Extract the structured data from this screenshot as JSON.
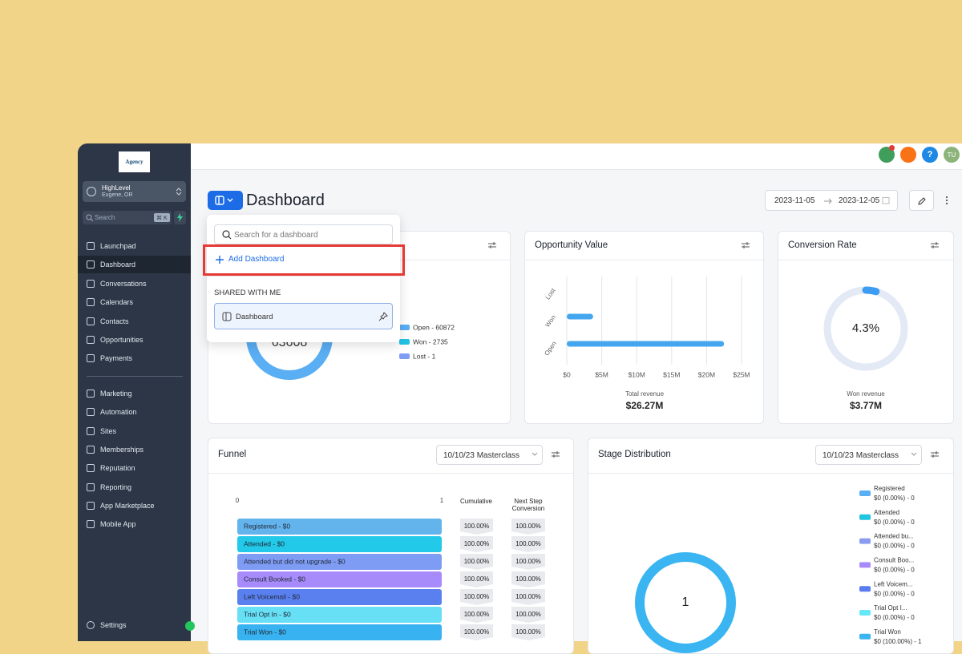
{
  "sidebar": {
    "logo": "Agency",
    "account": {
      "name": "HighLevel",
      "location": "Eugene, OR"
    },
    "search": "Search",
    "shortcut": "⌘ K",
    "nav": [
      "Launchpad",
      "Dashboard",
      "Conversations",
      "Calendars",
      "Contacts",
      "Opportunities",
      "Payments"
    ],
    "nav2": [
      "Marketing",
      "Automation",
      "Sites",
      "Memberships",
      "Reputation",
      "Reporting",
      "App Marketplace",
      "Mobile App"
    ],
    "settings": "Settings"
  },
  "topbar": {
    "help": "?",
    "avatar": "TU"
  },
  "header": {
    "title": "Dashboard",
    "start_date": "2023-11-05",
    "end_date": "2023-12-05"
  },
  "dropdown": {
    "search_placeholder": "Search for a dashboard",
    "add": "Add Dashboard",
    "section": "SHARED WITH ME",
    "items": [
      "Dashboard"
    ]
  },
  "opportunities": {
    "total": 63608,
    "series": [
      {
        "name": "Open - 60872",
        "value": 60872,
        "color": "#5aaef3"
      },
      {
        "name": "Won - 2735",
        "value": 2735,
        "color": "#22c3e6"
      },
      {
        "name": "Lost - 1",
        "value": 1,
        "color": "#7f9cf5"
      }
    ]
  },
  "opportunity_value": {
    "title": "Opportunity Value",
    "categories": [
      "Lost",
      "Won",
      "Open"
    ],
    "values": [
      0,
      3770000,
      22500000
    ],
    "color": "#45a6f0",
    "xlim": [
      0,
      25000000
    ],
    "xticks": [
      {
        "value": 0,
        "label": "$0"
      },
      {
        "value": 5000000,
        "label": "$5M"
      },
      {
        "value": 10000000,
        "label": "$10M"
      },
      {
        "value": 15000000,
        "label": "$15M"
      },
      {
        "value": 20000000,
        "label": "$20M"
      },
      {
        "value": 25000000,
        "label": "$25M"
      }
    ],
    "caption": "Total revenue",
    "caption_value": "$26.27M"
  },
  "conversion_rate": {
    "title": "Conversion Rate",
    "value": 4.3,
    "value_label": "4.3%",
    "lim": [
      0,
      100
    ],
    "color": "#3d9df2",
    "caption": "Won revenue",
    "caption_value": "$3.77M"
  },
  "funnel": {
    "title": "Funnel",
    "filter": "10/10/23 Masterclass",
    "xlim": [
      0,
      1
    ],
    "xticks": [
      0,
      1
    ],
    "columns": [
      "Cumulative",
      "Next Step Conversion"
    ],
    "rows": [
      {
        "label": "Registered - $0",
        "value": 1,
        "color": "#63b3ed",
        "cumulative": "100.00%",
        "next_step": "100.00%"
      },
      {
        "label": "Attended - $0",
        "value": 1,
        "color": "#22c9e8",
        "cumulative": "100.00%",
        "next_step": "100.00%"
      },
      {
        "label": "Attended but did not upgrade - $0",
        "value": 1,
        "color": "#7f9cf5",
        "cumulative": "100.00%",
        "next_step": "100.00%"
      },
      {
        "label": "Consult Booked - $0",
        "value": 1,
        "color": "#a78bfa",
        "cumulative": "100.00%",
        "next_step": "100.00%"
      },
      {
        "label": "Left Voicemail - $0",
        "value": 1,
        "color": "#5a80f0",
        "cumulative": "100.00%",
        "next_step": "100.00%"
      },
      {
        "label": "Trial Opt In - $0",
        "value": 1,
        "color": "#67e0f5",
        "cumulative": "100.00%",
        "next_step": "100.00%"
      },
      {
        "label": "Trial Won - $0",
        "value": 1,
        "color": "#38b2f0",
        "cumulative": "100.00%",
        "next_step": "100.00%"
      }
    ]
  },
  "stage_distribution": {
    "title": "Stage Distribution",
    "filter": "10/10/23 Masterclass",
    "total": 1,
    "series": [
      {
        "name": "Registered",
        "value_label": "$0 (0.00%) - 0",
        "value": 0,
        "color": "#5aaef3"
      },
      {
        "name": "Attended",
        "value_label": "$0 (0.00%) - 0",
        "value": 0,
        "color": "#22c5e0"
      },
      {
        "name": "Attended bu...",
        "value_label": "$0 (0.00%) - 0",
        "value": 0,
        "color": "#8b9cf0"
      },
      {
        "name": "Consult Boo...",
        "value_label": "$0 (0.00%) - 0",
        "value": 0,
        "color": "#a78bfa"
      },
      {
        "name": "Left Voicem...",
        "value_label": "$0 (0.00%) - 0",
        "value": 0,
        "color": "#5b7cf0"
      },
      {
        "name": "Trial Opt I...",
        "value_label": "$0 (0.00%) - 0",
        "value": 0,
        "color": "#67e8f9"
      },
      {
        "name": "Trial Won",
        "value_label": "$0 (100.00%) - 1",
        "value": 1,
        "color": "#3bb5f2"
      }
    ]
  }
}
